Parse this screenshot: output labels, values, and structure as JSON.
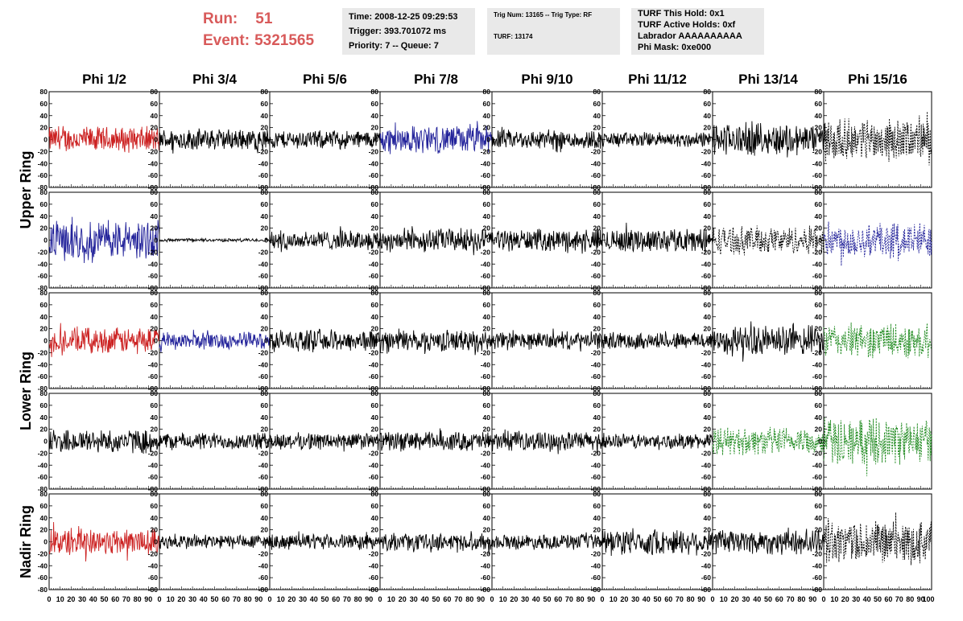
{
  "header": {
    "run_label": "Run:",
    "run_value": "51",
    "event_label": "Event:",
    "event_value": "5321565",
    "time": "Time: 2008-12-25 09:29:53",
    "trigger": "Trigger: 393.701072 ms",
    "priority": "Priority: 7 -- Queue: 7",
    "trig_num": "Trig Num: 13165 -- Trig Type: RF",
    "turf": "TURF: 13174",
    "turf_this_hold": "TURF This Hold: 0x1",
    "turf_active_holds": "TURF Active Holds: 0xf",
    "labrador": "Labrador AAAAAAAAAA",
    "phi_mask": "Phi Mask: 0xe000"
  },
  "colors": {
    "run_text": "#d85a5a",
    "info_bg": "#e9e9e9",
    "red": "#cc2222",
    "blue": "#22229a",
    "green": "#1f8a1f",
    "black": "#000000"
  },
  "chart_data": {
    "type": "line",
    "columns": [
      "Phi 1/2",
      "Phi 3/4",
      "Phi 5/6",
      "Phi 7/8",
      "Phi 9/10",
      "Phi 11/12",
      "Phi 13/14",
      "Phi 15/16"
    ],
    "ring_labels": [
      {
        "text": "Upper Ring",
        "rows": [
          0,
          1
        ]
      },
      {
        "text": "Lower Ring",
        "rows": [
          2,
          3
        ]
      },
      {
        "text": "Nadir Ring",
        "rows": [
          4
        ]
      }
    ],
    "rows": 5,
    "xlim": [
      0,
      100
    ],
    "ylim": [
      -80,
      80
    ],
    "x_ticks": [
      0,
      10,
      20,
      30,
      40,
      50,
      60,
      70,
      80,
      90
    ],
    "last_x_tick": "100",
    "y_ticks": [
      -80,
      -60,
      -40,
      -20,
      0,
      20,
      40,
      60,
      80
    ],
    "description_of_series": "Each panel shows one noise-like waveform oscillating about 0 across the 0-100 range; color and amplitude per panel given below (amplitude = approximate peak excursion).",
    "panels": [
      [
        {
          "color": "red",
          "amp": 24,
          "dash": false
        },
        {
          "color": "black",
          "amp": 20,
          "dash": false
        },
        {
          "color": "black",
          "amp": 17,
          "dash": false
        },
        {
          "color": "blue",
          "amp": 26,
          "dash": false
        },
        {
          "color": "black",
          "amp": 18,
          "dash": false
        },
        {
          "color": "black",
          "amp": 14,
          "dash": false
        },
        {
          "color": "black",
          "amp": 30,
          "dash": false
        },
        {
          "color": "black",
          "amp": 38,
          "dash": true
        }
      ],
      [
        {
          "color": "blue",
          "amp": 36,
          "dash": false
        },
        {
          "color": "black",
          "amp": 3,
          "dash": false
        },
        {
          "color": "black",
          "amp": 18,
          "dash": false
        },
        {
          "color": "black",
          "amp": 22,
          "dash": false
        },
        {
          "color": "black",
          "amp": 20,
          "dash": false
        },
        {
          "color": "black",
          "amp": 22,
          "dash": false
        },
        {
          "color": "black",
          "amp": 26,
          "dash": true
        },
        {
          "color": "blue",
          "amp": 34,
          "dash": true
        }
      ],
      [
        {
          "color": "red",
          "amp": 24,
          "dash": false
        },
        {
          "color": "blue",
          "amp": 16,
          "dash": false
        },
        {
          "color": "black",
          "amp": 20,
          "dash": false
        },
        {
          "color": "black",
          "amp": 20,
          "dash": false
        },
        {
          "color": "black",
          "amp": 16,
          "dash": false
        },
        {
          "color": "black",
          "amp": 16,
          "dash": false
        },
        {
          "color": "black",
          "amp": 28,
          "dash": false
        },
        {
          "color": "green",
          "amp": 32,
          "dash": true
        }
      ],
      [
        {
          "color": "black",
          "amp": 22,
          "dash": false
        },
        {
          "color": "black",
          "amp": 16,
          "dash": false
        },
        {
          "color": "black",
          "amp": 16,
          "dash": false
        },
        {
          "color": "black",
          "amp": 18,
          "dash": false
        },
        {
          "color": "black",
          "amp": 18,
          "dash": false
        },
        {
          "color": "black",
          "amp": 14,
          "dash": false
        },
        {
          "color": "green",
          "amp": 26,
          "dash": true
        },
        {
          "color": "green",
          "amp": 42,
          "dash": true
        }
      ],
      [
        {
          "color": "red",
          "amp": 26,
          "dash": false
        },
        {
          "color": "black",
          "amp": 14,
          "dash": false
        },
        {
          "color": "black",
          "amp": 14,
          "dash": false
        },
        {
          "color": "black",
          "amp": 16,
          "dash": false
        },
        {
          "color": "black",
          "amp": 14,
          "dash": false
        },
        {
          "color": "black",
          "amp": 24,
          "dash": false
        },
        {
          "color": "black",
          "amp": 24,
          "dash": false
        },
        {
          "color": "black",
          "amp": 40,
          "dash": true
        }
      ]
    ]
  }
}
